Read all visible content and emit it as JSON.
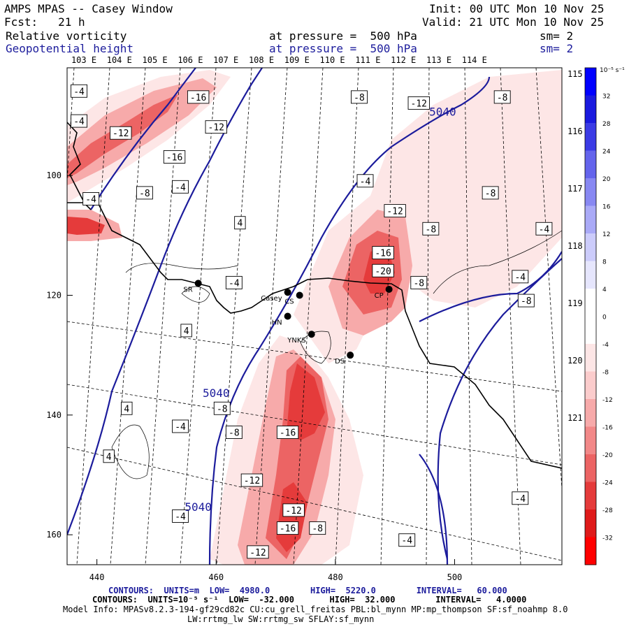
{
  "header": {
    "title": "AMPS MPAS -- Casey Window",
    "fcst": "Fcst:   21 h",
    "init": "Init: 00 UTC Mon 10 Nov 25",
    "valid": "Valid: 21 UTC Mon 10 Nov 25",
    "field1_name": "Relative vorticity",
    "field1_level": "at pressure =  500 hPa",
    "field1_sm": "sm= 2",
    "field2_name": "Geopotential height",
    "field2_level": "at pressure =  500 hPa",
    "field2_sm": "sm= 2"
  },
  "colors": {
    "geopotential": "#1c1c9c",
    "coast": "#000000",
    "red_shades": [
      "#fde6e6",
      "#fbcccc",
      "#f7aaaa",
      "#f28888",
      "#ec6464",
      "#e53b3b",
      "#df1a1a",
      "#ff0000"
    ],
    "blue_shades": [
      "#e6e6fd",
      "#ccccfb",
      "#aaaaf7",
      "#8888f2",
      "#6464ec",
      "#3b3be5",
      "#1a1adf",
      "#0000ff"
    ]
  },
  "chart_data": {
    "type": "contour_map",
    "x_axis": {
      "ticks": [
        440,
        460,
        480,
        500
      ],
      "range": [
        435,
        518
      ]
    },
    "y_axis": {
      "ticks": [
        100,
        120,
        140,
        160
      ],
      "range": [
        82,
        165
      ]
    },
    "top_longitudes": [
      "103 E",
      "104 E",
      "105 E",
      "106 E",
      "107 E",
      "108 E",
      "109 E",
      "110 E",
      "111 E",
      "112 E",
      "113 E",
      "114 E"
    ],
    "right_longitudes": [
      "115 E",
      "116 E",
      "117 E",
      "118 E",
      "119 E",
      "120 E",
      "121 E"
    ],
    "colorbar": {
      "unit": "10⁻⁵ s⁻¹",
      "labels": [
        "32",
        "28",
        "24",
        "20",
        "16",
        "12",
        "8",
        "4",
        "0",
        "-4",
        "-8",
        "-12",
        "-16",
        "-20",
        "-24",
        "-28",
        "-32"
      ]
    },
    "height_contour_labels": [
      {
        "text": "5040",
        "x": 498,
        "y": 90
      },
      {
        "text": "5040",
        "x": 460,
        "y": 137
      },
      {
        "text": "5040",
        "x": 457,
        "y": 156
      }
    ],
    "vorticity_labels": [
      {
        "text": "-4",
        "x": 437,
        "y": 86
      },
      {
        "text": "-16",
        "x": 457,
        "y": 87
      },
      {
        "text": "-4",
        "x": 437,
        "y": 91
      },
      {
        "text": "-12",
        "x": 444,
        "y": 93
      },
      {
        "text": "-12",
        "x": 460,
        "y": 92
      },
      {
        "text": "-16",
        "x": 453,
        "y": 97
      },
      {
        "text": "-4",
        "x": 454,
        "y": 102
      },
      {
        "text": "-8",
        "x": 448,
        "y": 103
      },
      {
        "text": "-4",
        "x": 439,
        "y": 104
      },
      {
        "text": "4",
        "x": 464,
        "y": 108
      },
      {
        "text": "-8",
        "x": 484,
        "y": 87
      },
      {
        "text": "-12",
        "x": 494,
        "y": 88
      },
      {
        "text": "-8",
        "x": 508,
        "y": 87
      },
      {
        "text": "-4",
        "x": 485,
        "y": 101
      },
      {
        "text": "-8",
        "x": 506,
        "y": 103
      },
      {
        "text": "-12",
        "x": 490,
        "y": 106
      },
      {
        "text": "-8",
        "x": 496,
        "y": 109
      },
      {
        "text": "-4",
        "x": 515,
        "y": 109
      },
      {
        "text": "-16",
        "x": 488,
        "y": 113
      },
      {
        "text": "-20",
        "x": 488,
        "y": 116
      },
      {
        "text": "-4",
        "x": 463,
        "y": 118
      },
      {
        "text": "-8",
        "x": 494,
        "y": 118
      },
      {
        "text": "-4",
        "x": 511,
        "y": 117
      },
      {
        "text": "-8",
        "x": 512,
        "y": 121
      },
      {
        "text": "4",
        "x": 455,
        "y": 126
      },
      {
        "text": "-8",
        "x": 461,
        "y": 139
      },
      {
        "text": "4",
        "x": 445,
        "y": 139
      },
      {
        "text": "-4",
        "x": 454,
        "y": 142
      },
      {
        "text": "-8",
        "x": 463,
        "y": 143
      },
      {
        "text": "-16",
        "x": 472,
        "y": 143
      },
      {
        "text": "4",
        "x": 442,
        "y": 147
      },
      {
        "text": "-12",
        "x": 466,
        "y": 151
      },
      {
        "text": "-4",
        "x": 511,
        "y": 154
      },
      {
        "text": "-12",
        "x": 473,
        "y": 156
      },
      {
        "text": "-4",
        "x": 454,
        "y": 157
      },
      {
        "text": "-16",
        "x": 472,
        "y": 159
      },
      {
        "text": "-8",
        "x": 477,
        "y": 159
      },
      {
        "text": "-4",
        "x": 492,
        "y": 161
      },
      {
        "text": "-12",
        "x": 467,
        "y": 163
      }
    ],
    "stations": [
      {
        "name": "SR",
        "x": 457,
        "y": 118
      },
      {
        "name": "Casey",
        "x": 472,
        "y": 119.5
      },
      {
        "name": "CS",
        "x": 474,
        "y": 120
      },
      {
        "name": "CP",
        "x": 489,
        "y": 119
      },
      {
        "name": "HN",
        "x": 472,
        "y": 123.5
      },
      {
        "name": "YNKS",
        "x": 476,
        "y": 126.5
      },
      {
        "name": "DS",
        "x": 482.5,
        "y": 130
      }
    ]
  },
  "footer": {
    "contours1": "CONTOURS:  UNITS=m  LOW=  4980.0        HIGH=  5220.0        INTERVAL=   60.000",
    "contours2": "CONTOURS:  UNITS=10⁻⁵ s⁻¹  LOW=  -32.000       HIGH=  32.000        INTERVAL=   4.0000",
    "model_info": "Model Info: MPASv8.2.3-194-gf29cd82c CU:cu_grell_freitas PBL:bl_mynn MP:mp_thompson SF:sf_noahmp 8.0",
    "model_info2": "LW:rrtmg_lw SW:rrtmg_sw SFLAY:sf_mynn"
  }
}
